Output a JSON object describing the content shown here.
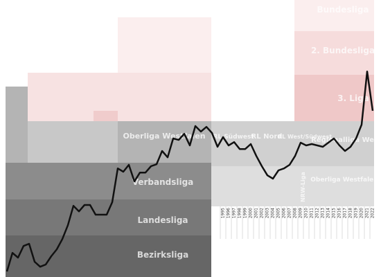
{
  "chart_data": {
    "type": "line",
    "categories": [
      null,
      null,
      null,
      null,
      null,
      null,
      null,
      null,
      null,
      null,
      null,
      null,
      null,
      null,
      null,
      null,
      null,
      null,
      null,
      null,
      null,
      null,
      null,
      null,
      null,
      null,
      null,
      null,
      null,
      null,
      null,
      null,
      null,
      null,
      null,
      null,
      null,
      null,
      null,
      1995,
      1996,
      1997,
      1998,
      1999,
      2000,
      2001,
      2002,
      2003,
      2004,
      2005,
      2006,
      2007,
      2008,
      2009,
      2010,
      2011,
      2012,
      2013,
      2014,
      2015,
      2016,
      2017,
      2018,
      2019,
      2020,
      2021,
      2022
    ],
    "values": [
      98,
      91.3,
      93,
      88.8,
      88,
      94.5,
      96.3,
      95.5,
      92.5,
      90,
      86.3,
      81.3,
      74.3,
      76.3,
      74,
      74,
      77.5,
      77.5,
      77.5,
      73,
      60.8,
      62,
      59.5,
      65.5,
      62.3,
      62.3,
      60,
      59.3,
      54.5,
      56.8,
      50,
      50.5,
      48.3,
      52.5,
      45.5,
      47.5,
      45.8,
      48,
      53,
      49.5,
      52.5,
      51.3,
      53.8,
      53.8,
      52,
      56.3,
      60,
      63.3,
      64.5,
      61.5,
      60.8,
      59.5,
      56.3,
      51.5,
      52.5,
      52,
      52.5,
      53,
      51.5,
      50,
      52.5,
      54.5,
      53,
      50,
      45,
      25.8,
      40
    ],
    "color": "#111111",
    "ylim": [
      100,
      0
    ],
    "annotations": [
      "Bundesliga",
      "2. Bundesliga",
      "3. Liga",
      "Oberliga Westfalen",
      "RL Südwest",
      "RL Nord",
      "RL West/Südwest",
      "Regionalliga West",
      "Verbandsliga",
      "NRW-Liga",
      "Landesliga",
      "Oberliga Westfalen",
      "Bezirksliga"
    ]
  }
}
